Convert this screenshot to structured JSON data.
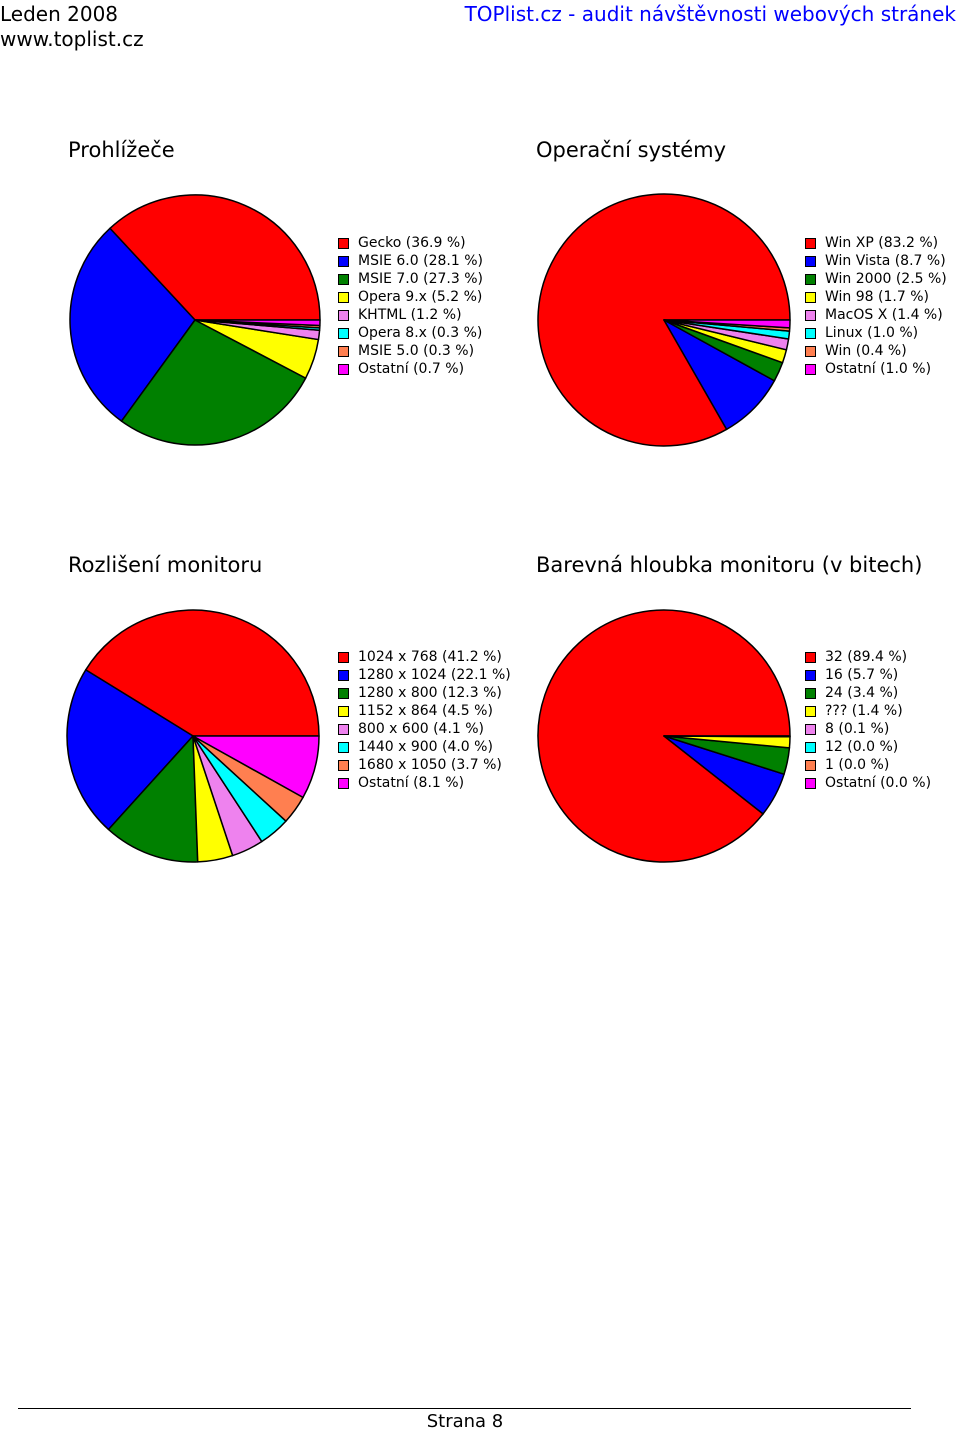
{
  "header": {
    "date": "Leden 2008",
    "site": "www.toplist.cz",
    "title": "TOPlist.cz - audit návštěvnosti webových stránek"
  },
  "footer": {
    "page_label": "Strana 8"
  },
  "chart_data": [
    {
      "type": "pie",
      "title": "Prohlížeče",
      "slices": [
        {
          "label": "Gecko (36.9 %)",
          "value": 36.9,
          "color": "#ff0000"
        },
        {
          "label": "MSIE 6.0 (28.1 %)",
          "value": 28.1,
          "color": "#0000ff"
        },
        {
          "label": "MSIE 7.0 (27.3 %)",
          "value": 27.3,
          "color": "#008000"
        },
        {
          "label": "Opera 9.x (5.2 %)",
          "value": 5.2,
          "color": "#ffff00"
        },
        {
          "label": "KHTML (1.2 %)",
          "value": 1.2,
          "color": "#ee82ee"
        },
        {
          "label": "Opera 8.x (0.3 %)",
          "value": 0.3,
          "color": "#00ffff"
        },
        {
          "label": "MSIE 5.0 (0.3 %)",
          "value": 0.3,
          "color": "#ff7f50"
        },
        {
          "label": "Ostatní (0.7 %)",
          "value": 0.7,
          "color": "#ff00ff"
        }
      ]
    },
    {
      "type": "pie",
      "title": "Operační systémy",
      "slices": [
        {
          "label": "Win XP (83.2 %)",
          "value": 83.2,
          "color": "#ff0000"
        },
        {
          "label": "Win Vista (8.7 %)",
          "value": 8.7,
          "color": "#0000ff"
        },
        {
          "label": "Win 2000 (2.5 %)",
          "value": 2.5,
          "color": "#008000"
        },
        {
          "label": "Win 98 (1.7 %)",
          "value": 1.7,
          "color": "#ffff00"
        },
        {
          "label": "MacOS X (1.4 %)",
          "value": 1.4,
          "color": "#ee82ee"
        },
        {
          "label": "Linux (1.0 %)",
          "value": 1.0,
          "color": "#00ffff"
        },
        {
          "label": "Win (0.4 %)",
          "value": 0.4,
          "color": "#ff7f50"
        },
        {
          "label": "Ostatní (1.0 %)",
          "value": 1.0,
          "color": "#ff00ff"
        }
      ]
    },
    {
      "type": "pie",
      "title": "Rozlišení monitoru",
      "slices": [
        {
          "label": "1024 x 768 (41.2 %)",
          "value": 41.2,
          "color": "#ff0000"
        },
        {
          "label": "1280 x 1024 (22.1 %)",
          "value": 22.1,
          "color": "#0000ff"
        },
        {
          "label": "1280 x 800 (12.3 %)",
          "value": 12.3,
          "color": "#008000"
        },
        {
          "label": "1152 x 864 (4.5 %)",
          "value": 4.5,
          "color": "#ffff00"
        },
        {
          "label": "800 x 600 (4.1 %)",
          "value": 4.1,
          "color": "#ee82ee"
        },
        {
          "label": "1440 x 900 (4.0 %)",
          "value": 4.0,
          "color": "#00ffff"
        },
        {
          "label": "1680 x 1050 (3.7 %)",
          "value": 3.7,
          "color": "#ff7f50"
        },
        {
          "label": "Ostatní (8.1 %)",
          "value": 8.1,
          "color": "#ff00ff"
        }
      ]
    },
    {
      "type": "pie",
      "title": "Barevná hloubka monitoru (v bitech)",
      "slices": [
        {
          "label": "32 (89.4 %)",
          "value": 89.4,
          "color": "#ff0000"
        },
        {
          "label": "16 (5.7 %)",
          "value": 5.7,
          "color": "#0000ff"
        },
        {
          "label": "24 (3.4 %)",
          "value": 3.4,
          "color": "#008000"
        },
        {
          "label": "??? (1.4 %)",
          "value": 1.4,
          "color": "#ffff00"
        },
        {
          "label": "8 (0.1 %)",
          "value": 0.1,
          "color": "#ee82ee"
        },
        {
          "label": "12 (0.0 %)",
          "value": 0.0,
          "color": "#00ffff"
        },
        {
          "label": "1 (0.0 %)",
          "value": 0.0,
          "color": "#ff7f50"
        },
        {
          "label": "Ostatní (0.0 %)",
          "value": 0.0,
          "color": "#ff00ff"
        }
      ]
    }
  ]
}
